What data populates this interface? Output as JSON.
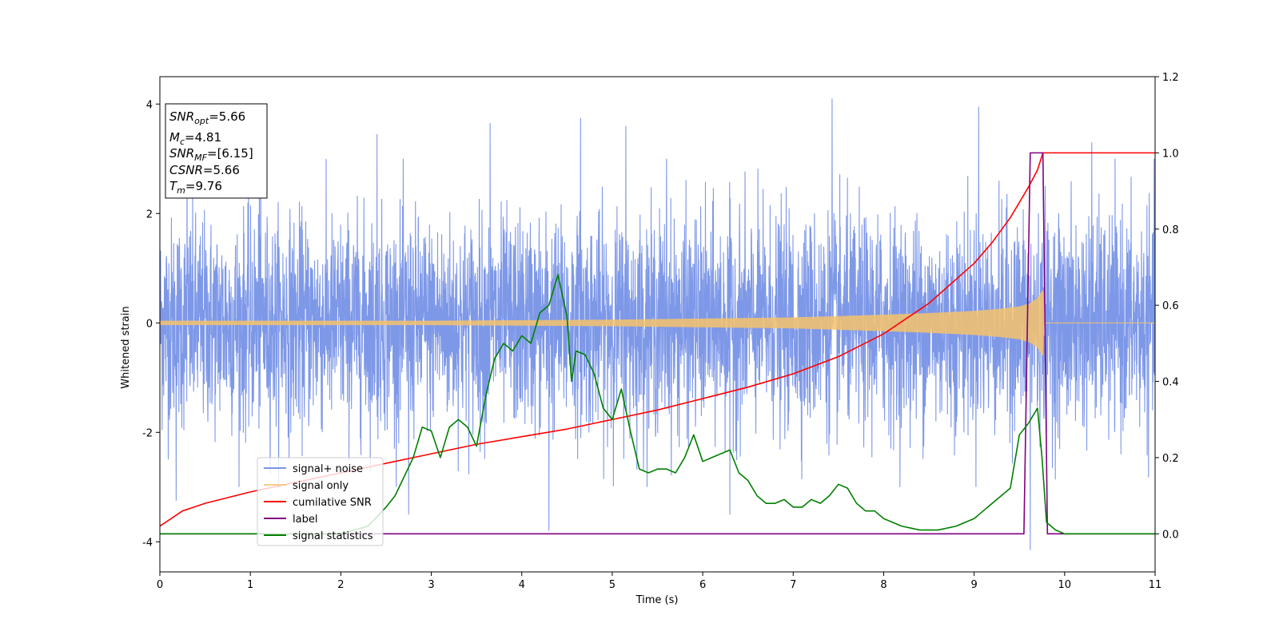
{
  "chart_data": {
    "type": "line",
    "title": "",
    "xlabel": "Time (s)",
    "ylabel": "Whitened strain",
    "xlim": [
      0,
      11
    ],
    "ylim": [
      -4.55,
      4.5
    ],
    "y2lim": [
      -0.1,
      1.2
    ],
    "x_ticks": [
      0,
      1,
      2,
      3,
      4,
      5,
      6,
      7,
      8,
      9,
      10,
      11
    ],
    "y_ticks": [
      -4,
      -2,
      0,
      2,
      4
    ],
    "y2_ticks": [
      "0.0",
      "0.2",
      "0.4",
      "0.6",
      "0.8",
      "1.0",
      "1.2"
    ],
    "grid": false,
    "legend_position": "lower-left",
    "annotation": {
      "position": "upper-left",
      "lines": [
        {
          "base": "SNR",
          "sub": "opt",
          "value": "=5.66"
        },
        {
          "base": "M",
          "sub": "c",
          "value": "=4.81"
        },
        {
          "base": "SNR",
          "sub": "MF",
          "value": "=[6.15]"
        },
        {
          "base": "CSNR",
          "sub": "",
          "value": "=5.66"
        },
        {
          "base": "T",
          "sub": "m",
          "value": "=9.76"
        }
      ]
    },
    "series": [
      {
        "name": "signal+ noise",
        "color": "#7b96e8",
        "axis": "left",
        "noise_sigma": 1.0,
        "noise_envelope": [
          -3.0,
          3.0
        ],
        "spikes": [
          [
            0.18,
            -3.25
          ],
          [
            0.3,
            3.3
          ],
          [
            1.1,
            3.4
          ],
          [
            2.4,
            3.45
          ],
          [
            2.75,
            -3.5
          ],
          [
            3.65,
            3.65
          ],
          [
            4.3,
            -3.8
          ],
          [
            4.65,
            3.75
          ],
          [
            5.15,
            3.6
          ],
          [
            5.6,
            3.0
          ],
          [
            6.3,
            -3.5
          ],
          [
            7.43,
            4.1
          ],
          [
            9.05,
            3.95
          ],
          [
            9.62,
            -4.15
          ],
          [
            10.3,
            3.3
          ]
        ]
      },
      {
        "name": "signal only",
        "color": "#f5c26b",
        "axis": "left",
        "envelope": [
          [
            0,
            0.04
          ],
          [
            3,
            0.04
          ],
          [
            5,
            0.06
          ],
          [
            6,
            0.08
          ],
          [
            7,
            0.1
          ],
          [
            8,
            0.15
          ],
          [
            8.5,
            0.18
          ],
          [
            9,
            0.22
          ],
          [
            9.3,
            0.26
          ],
          [
            9.5,
            0.3
          ],
          [
            9.62,
            0.36
          ],
          [
            9.7,
            0.45
          ],
          [
            9.76,
            0.6
          ],
          [
            9.77,
            0
          ]
        ]
      },
      {
        "name": "cumilative SNR",
        "color": "#ff0000",
        "axis": "right",
        "x": [
          0,
          0.25,
          0.5,
          1,
          1.5,
          2,
          2.5,
          3,
          3.5,
          4,
          4.5,
          5,
          5.5,
          6,
          6.5,
          7,
          7.5,
          8,
          8.5,
          9,
          9.2,
          9.4,
          9.5,
          9.6,
          9.7,
          9.76,
          11
        ],
        "values": [
          0.02,
          0.06,
          0.08,
          0.11,
          0.135,
          0.16,
          0.185,
          0.21,
          0.235,
          0.255,
          0.275,
          0.3,
          0.325,
          0.355,
          0.385,
          0.42,
          0.465,
          0.525,
          0.605,
          0.71,
          0.765,
          0.83,
          0.87,
          0.91,
          0.955,
          1.0,
          1.0
        ]
      },
      {
        "name": "label",
        "color": "#800080",
        "axis": "right",
        "x": [
          0,
          9.55,
          9.62,
          9.76,
          9.81,
          11
        ],
        "values": [
          0,
          0,
          1,
          1,
          0,
          0
        ]
      },
      {
        "name": "signal statistics",
        "color": "#008000",
        "axis": "right",
        "x": [
          0,
          2.0,
          2.3,
          2.5,
          2.6,
          2.7,
          2.8,
          2.9,
          3.0,
          3.1,
          3.2,
          3.3,
          3.4,
          3.5,
          3.6,
          3.7,
          3.8,
          3.9,
          4.0,
          4.1,
          4.2,
          4.3,
          4.4,
          4.5,
          4.55,
          4.6,
          4.7,
          4.8,
          4.9,
          5.0,
          5.1,
          5.2,
          5.3,
          5.4,
          5.5,
          5.6,
          5.7,
          5.8,
          5.9,
          6.0,
          6.1,
          6.2,
          6.3,
          6.4,
          6.5,
          6.6,
          6.7,
          6.8,
          6.9,
          7.0,
          7.1,
          7.2,
          7.3,
          7.4,
          7.5,
          7.6,
          7.7,
          7.8,
          7.9,
          8.0,
          8.2,
          8.4,
          8.6,
          8.8,
          9.0,
          9.1,
          9.2,
          9.3,
          9.4,
          9.5,
          9.6,
          9.7,
          9.75,
          9.8,
          9.9,
          10.0,
          11
        ],
        "values": [
          0.0,
          0.0,
          0.02,
          0.07,
          0.1,
          0.15,
          0.2,
          0.28,
          0.27,
          0.2,
          0.28,
          0.3,
          0.28,
          0.23,
          0.36,
          0.46,
          0.5,
          0.48,
          0.52,
          0.5,
          0.58,
          0.6,
          0.68,
          0.57,
          0.4,
          0.48,
          0.47,
          0.42,
          0.33,
          0.3,
          0.38,
          0.27,
          0.17,
          0.16,
          0.17,
          0.17,
          0.16,
          0.2,
          0.26,
          0.19,
          0.2,
          0.21,
          0.22,
          0.16,
          0.14,
          0.1,
          0.08,
          0.08,
          0.09,
          0.07,
          0.07,
          0.09,
          0.08,
          0.1,
          0.13,
          0.12,
          0.08,
          0.06,
          0.06,
          0.04,
          0.02,
          0.01,
          0.01,
          0.02,
          0.04,
          0.06,
          0.08,
          0.1,
          0.12,
          0.26,
          0.29,
          0.33,
          0.2,
          0.03,
          0.01,
          0.0,
          0.0
        ]
      }
    ]
  }
}
